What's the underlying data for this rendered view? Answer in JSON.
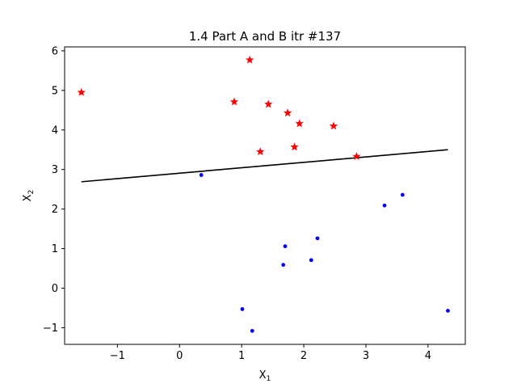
{
  "chart_data": {
    "type": "scatter",
    "title": "1.4 Part A and B itr #137",
    "xlabel": "X",
    "xlabel_sub": "1",
    "ylabel": "X",
    "ylabel_sub": "2",
    "xlim": [
      -1.85,
      4.6
    ],
    "ylim": [
      -1.42,
      6.1
    ],
    "xticks": [
      -1,
      0,
      1,
      2,
      3,
      4
    ],
    "yticks": [
      -1,
      0,
      1,
      2,
      3,
      4,
      5,
      6
    ],
    "xtick_labels": [
      "−1",
      "0",
      "1",
      "2",
      "3",
      "4"
    ],
    "ytick_labels": [
      "−1",
      "0",
      "1",
      "2",
      "3",
      "4",
      "5",
      "6"
    ],
    "grid": false,
    "series": [
      {
        "marker": "star",
        "color": "#ff0000",
        "points": [
          [
            -1.58,
            4.95
          ],
          [
            1.13,
            5.77
          ],
          [
            0.88,
            4.71
          ],
          [
            1.43,
            4.65
          ],
          [
            1.74,
            4.43
          ],
          [
            1.93,
            4.16
          ],
          [
            2.48,
            4.1
          ],
          [
            1.3,
            3.45
          ],
          [
            1.85,
            3.57
          ],
          [
            2.85,
            3.33
          ]
        ]
      },
      {
        "marker": "circle",
        "color": "#0000ff",
        "points": [
          [
            0.35,
            2.86
          ],
          [
            3.3,
            2.09
          ],
          [
            3.59,
            2.36
          ],
          [
            2.22,
            1.26
          ],
          [
            1.7,
            1.06
          ],
          [
            2.12,
            0.71
          ],
          [
            1.67,
            0.59
          ],
          [
            1.01,
            -0.53
          ],
          [
            1.17,
            -1.08
          ],
          [
            4.32,
            -0.57
          ]
        ]
      }
    ],
    "lines": [
      {
        "color": "#000000",
        "x": [
          -1.58,
          4.32
        ],
        "y": [
          2.69,
          3.5
        ]
      }
    ]
  }
}
